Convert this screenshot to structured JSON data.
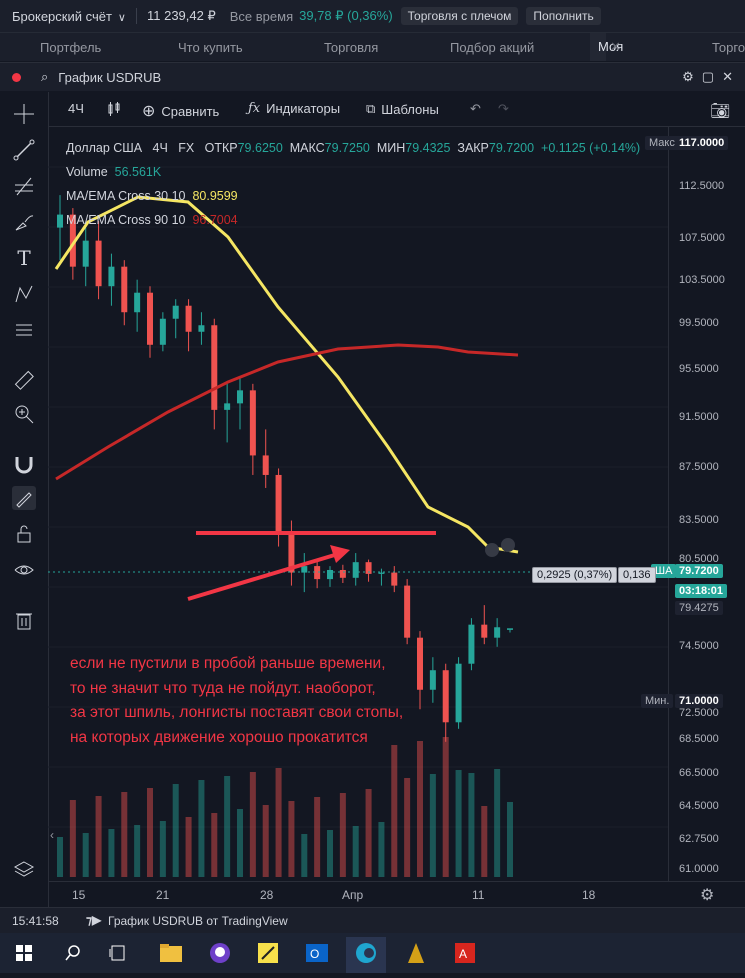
{
  "topbar": {
    "account_label": "Брокерский счёт",
    "balance": "11 239,42 ₽",
    "period_label": "Все время",
    "period_change": "39,78 ₽ (0,36%)",
    "margin_button": "Торговля с плечом",
    "topup_button": "Пополнить"
  },
  "nav": {
    "tabs": [
      "Портфель",
      "Что купить",
      "Торговля",
      "Подбор акций",
      "Моя валюта",
      "Торгов"
    ]
  },
  "window": {
    "title": "График USDRUB"
  },
  "toolbar": {
    "interval": "4Ч",
    "compare": "Сравнить",
    "indicators": "Индикаторы",
    "templates": "Шаблоны"
  },
  "legend": {
    "symbol": "Доллар США",
    "interval": "4Ч",
    "exchange": "FX",
    "open_label": "ОТКР",
    "open": "79.6250",
    "high_label": "МАКС",
    "high": "79.7250",
    "low_label": "МИН",
    "low": "79.4325",
    "close_label": "ЗАКР",
    "close": "79.7200",
    "change": "+0.1125 (+0.14%)",
    "volume_label": "Volume",
    "volume": "56.561K",
    "ma1_label": "MA/EMA Cross 30 10",
    "ma1_value": "80.9599",
    "ma2_label": "MA/EMA Cross 90 10",
    "ma2_value": "96.7004"
  },
  "price_axis": {
    "max_label": "Макс.",
    "max_value": "117.0000",
    "min_label": "Мин.",
    "min_value": "71.0000",
    "ticks": [
      "112.5000",
      "107.5000",
      "103.5000",
      "99.5000",
      "95.5000",
      "91.5000",
      "87.5000",
      "83.5000",
      "80.5000",
      "74.5000",
      "72.5000",
      "68.5000",
      "66.5000",
      "64.5000",
      "62.7500",
      "61.0000"
    ],
    "last_price": "79.7200",
    "countdown": "03:18:01",
    "extra_price": "79.4275",
    "instrument_tag": "ША",
    "info_change": "0,2925 (0,37%)",
    "info_small": "0,136"
  },
  "time_axis": {
    "labels": [
      "15",
      "21",
      "28",
      "Апр",
      "11",
      "18"
    ]
  },
  "annotation": {
    "lines": [
      "если не пустили в пробой раньше времени,",
      "то не значит что туда не пойдут. наоборот,",
      "за этот шпиль, лонгисты поставят свои стопы,",
      "на которых движение хорошо прокатится"
    ]
  },
  "bottombar": {
    "time": "15:41:58",
    "caption": "График USDRUB от TradingView"
  },
  "colors": {
    "up": "#26a69a",
    "down": "#ef5350",
    "ma_fast": "#f5e663",
    "ma_slow": "#c62828",
    "annotation": "#f23645"
  },
  "chart_data": {
    "type": "candlestick",
    "y_range": [
      61,
      117
    ],
    "x_labels": [
      "15",
      "21",
      "28",
      "Апр",
      "11",
      "18"
    ],
    "candles_approx": [
      [
        110.5,
        113.0,
        108.0,
        111.5
      ],
      [
        111.5,
        112.0,
        106.5,
        107.5
      ],
      [
        107.5,
        110.5,
        106.0,
        109.5
      ],
      [
        109.5,
        111.0,
        105.0,
        106.0
      ],
      [
        106.0,
        108.5,
        104.5,
        107.5
      ],
      [
        107.5,
        108.0,
        103.0,
        104.0
      ],
      [
        104.0,
        106.5,
        102.5,
        105.5
      ],
      [
        105.5,
        106.0,
        100.5,
        101.5
      ],
      [
        101.5,
        104.0,
        101.0,
        103.5
      ],
      [
        103.5,
        105.0,
        102.0,
        104.5
      ],
      [
        104.5,
        105.0,
        101.0,
        102.5
      ],
      [
        102.5,
        104.0,
        101.5,
        103.0
      ],
      [
        103.0,
        103.5,
        95.0,
        96.5
      ],
      [
        96.5,
        98.5,
        94.0,
        97.0
      ],
      [
        97.0,
        99.0,
        95.0,
        98.0
      ],
      [
        98.0,
        98.5,
        91.5,
        93.0
      ],
      [
        93.0,
        95.0,
        90.5,
        91.5
      ],
      [
        91.5,
        92.0,
        86.0,
        87.0
      ],
      [
        87.0,
        88.0,
        83.0,
        84.0
      ],
      [
        84.0,
        85.5,
        82.5,
        84.5
      ],
      [
        84.5,
        85.0,
        82.8,
        83.5
      ],
      [
        83.5,
        84.5,
        82.9,
        84.2
      ],
      [
        84.2,
        84.6,
        83.2,
        83.6
      ],
      [
        83.6,
        85.5,
        83.0,
        84.8
      ],
      [
        84.8,
        85.0,
        83.3,
        83.9
      ],
      [
        83.9,
        84.3,
        83.0,
        84.0
      ],
      [
        84.0,
        84.5,
        82.5,
        83.0
      ],
      [
        83.0,
        83.5,
        78.5,
        79.0
      ],
      [
        79.0,
        79.5,
        73.5,
        75.0
      ],
      [
        75.0,
        77.5,
        74.0,
        76.5
      ],
      [
        76.5,
        77.0,
        71.0,
        72.5
      ],
      [
        72.5,
        77.5,
        72.0,
        77.0
      ],
      [
        77.0,
        80.5,
        76.5,
        80.0
      ],
      [
        80.0,
        81.5,
        78.5,
        79.0
      ],
      [
        79.0,
        80.5,
        78.3,
        79.8
      ],
      [
        79.6,
        79.7,
        79.4,
        79.72
      ]
    ]
  }
}
